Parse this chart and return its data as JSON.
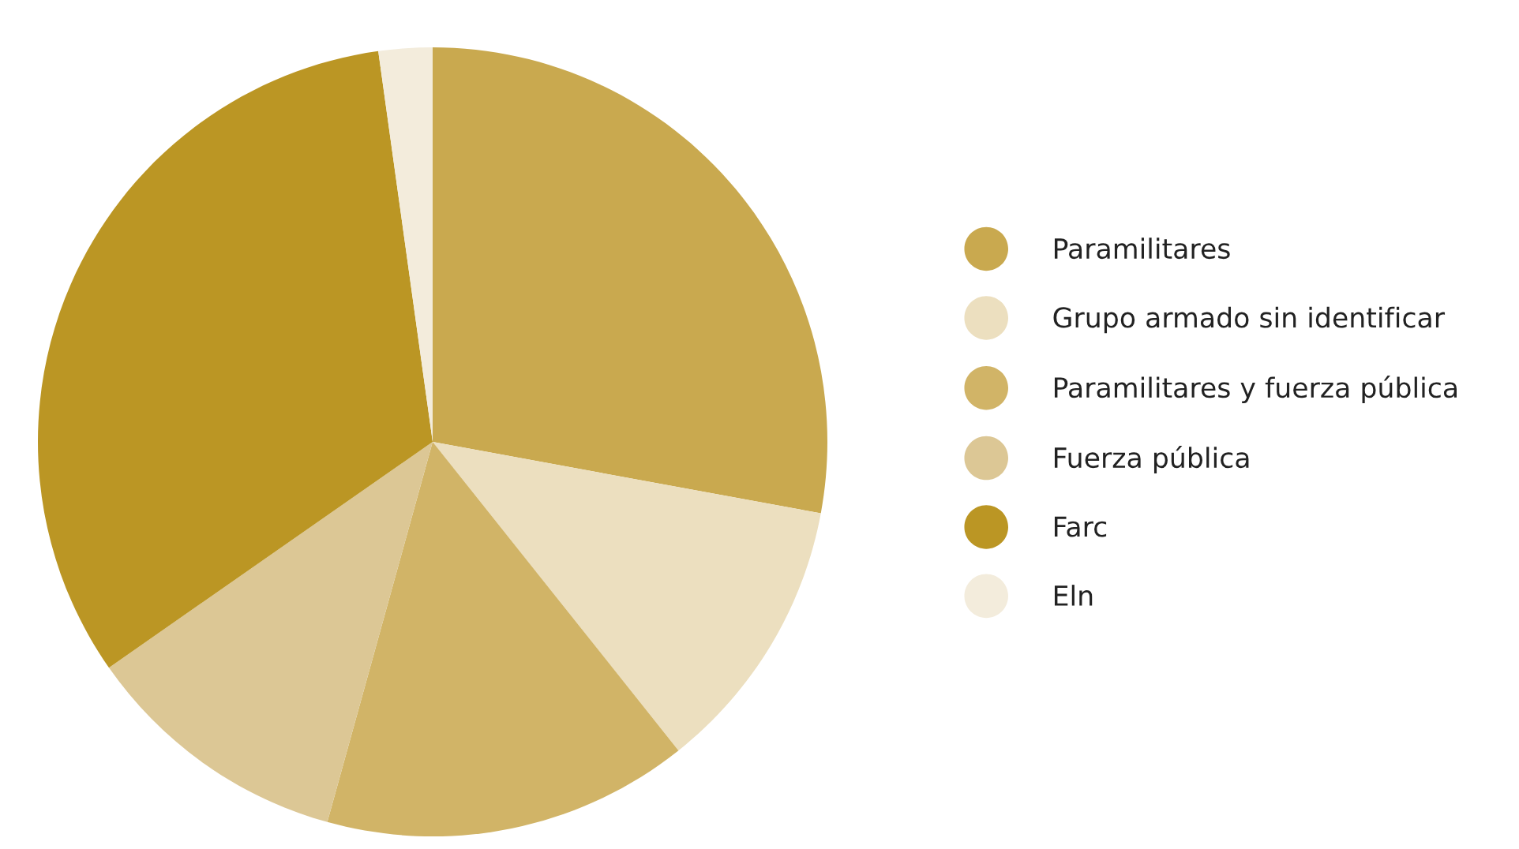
{
  "chart_data": {
    "type": "pie",
    "categories": [
      "Paramilitares",
      "Grupo armado sin identificar",
      "Paramilitares y fuerza pública",
      "Fuerza pública",
      "Farc",
      "Eln"
    ],
    "values": [
      27.9,
      11.4,
      15.0,
      11.0,
      32.5,
      2.2
    ],
    "colors": [
      "#c9a94f",
      "#ecdfbf",
      "#d1b467",
      "#dcc795",
      "#bb9624",
      "#f3ecdc"
    ],
    "legend": "right"
  }
}
